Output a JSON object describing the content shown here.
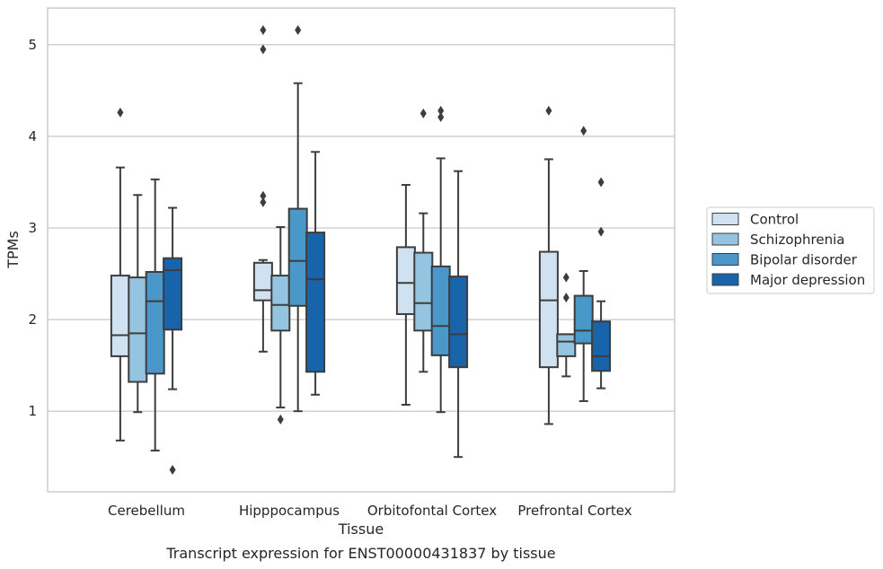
{
  "caption": "Transcript expression for ENST00000431837 by tissue",
  "chart_data": {
    "type": "box",
    "xlabel": "Tissue",
    "ylabel": "TPMs",
    "ylim": [
      0.12,
      5.4
    ],
    "yticks": [
      1,
      2,
      3,
      4,
      5
    ],
    "grid": "horizontal",
    "legend_position": "right",
    "categories": [
      "Cerebellum",
      "Hipppocampus",
      "Orbitofontal Cortex",
      "Prefrontal Cortex"
    ],
    "series": [
      {
        "name": "Control",
        "color": "#d0e1f2",
        "boxes": [
          {
            "whislo": 0.68,
            "q1": 1.6,
            "med": 1.83,
            "q3": 2.48,
            "whishi": 3.66,
            "fliers": [
              4.26
            ]
          },
          {
            "whislo": 1.65,
            "q1": 2.21,
            "med": 2.32,
            "q3": 2.62,
            "whishi": 2.65,
            "fliers": [
              3.35,
              3.28,
              4.95,
              5.16
            ]
          },
          {
            "whislo": 1.07,
            "q1": 2.06,
            "med": 2.4,
            "q3": 2.79,
            "whishi": 3.47,
            "fliers": []
          },
          {
            "whislo": 0.86,
            "q1": 1.48,
            "med": 2.21,
            "q3": 2.74,
            "whishi": 3.75,
            "fliers": [
              4.28
            ]
          }
        ]
      },
      {
        "name": "Schizophrenia",
        "color": "#94c4df",
        "boxes": [
          {
            "whislo": 0.99,
            "q1": 1.32,
            "med": 1.85,
            "q3": 2.46,
            "whishi": 3.36,
            "fliers": []
          },
          {
            "whislo": 1.04,
            "q1": 1.88,
            "med": 2.16,
            "q3": 2.48,
            "whishi": 3.01,
            "fliers": [
              0.91
            ]
          },
          {
            "whislo": 1.43,
            "q1": 1.88,
            "med": 2.18,
            "q3": 2.73,
            "whishi": 3.16,
            "fliers": [
              4.25
            ]
          },
          {
            "whislo": 1.38,
            "q1": 1.6,
            "med": 1.76,
            "q3": 1.84,
            "whishi": 1.84,
            "fliers": [
              2.46,
              2.24
            ]
          }
        ]
      },
      {
        "name": "Bipolar disorder",
        "color": "#4a98c9",
        "boxes": [
          {
            "whislo": 0.57,
            "q1": 1.41,
            "med": 2.2,
            "q3": 2.52,
            "whishi": 3.53,
            "fliers": []
          },
          {
            "whislo": 1.0,
            "q1": 2.15,
            "med": 2.64,
            "q3": 3.21,
            "whishi": 4.58,
            "fliers": [
              5.16
            ]
          },
          {
            "whislo": 0.99,
            "q1": 1.61,
            "med": 1.93,
            "q3": 2.58,
            "whishi": 3.76,
            "fliers": [
              4.28,
              4.21
            ]
          },
          {
            "whislo": 1.11,
            "q1": 1.74,
            "med": 1.88,
            "q3": 2.26,
            "whishi": 2.53,
            "fliers": [
              4.06
            ]
          }
        ]
      },
      {
        "name": "Major depression",
        "color": "#1764ab",
        "boxes": [
          {
            "whislo": 1.24,
            "q1": 1.89,
            "med": 2.54,
            "q3": 2.67,
            "whishi": 3.22,
            "fliers": [
              0.36
            ]
          },
          {
            "whislo": 1.18,
            "q1": 1.43,
            "med": 2.44,
            "q3": 2.95,
            "whishi": 3.83,
            "fliers": []
          },
          {
            "whislo": 0.5,
            "q1": 1.48,
            "med": 1.84,
            "q3": 2.47,
            "whishi": 3.62,
            "fliers": []
          },
          {
            "whislo": 1.25,
            "q1": 1.44,
            "med": 1.6,
            "q3": 1.98,
            "whishi": 2.2,
            "fliers": [
              3.5,
              2.96
            ]
          }
        ]
      }
    ]
  }
}
